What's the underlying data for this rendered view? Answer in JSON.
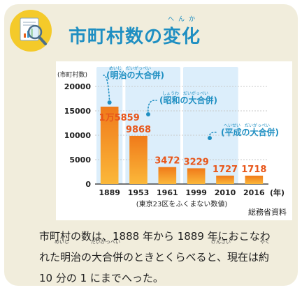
{
  "title": "市町村数の変化",
  "title_ruby": "へんか",
  "source": "総務省資料",
  "description": "市町村の数は、1888 年から 1889 年におこなわれた明治の大合併のときとくらべると、現在は約 10 分の 1 にまでへった。",
  "description_lines": [
    "市町村の数は、1888 年から 1889 年におこなわ",
    "れた明治の大合併のときとくらべると、現在は約",
    "10 分の 1 にまでへった。"
  ],
  "description_ruby": [
    "めいじ",
    "だいがっぺい",
    "げんざい",
    "やく"
  ],
  "colors": {
    "accent": "#1f8fc2",
    "bar_top": "#f07a1a",
    "bar_bottom": "#fbb83a",
    "label": "#e8561a",
    "highlight": "#dceefb"
  },
  "chart_data": {
    "type": "bar",
    "ylabel": "(市町村数)",
    "xunit": "(年)",
    "categories": [
      "1889",
      "1953",
      "1961",
      "1999",
      "2010",
      "2016"
    ],
    "values": [
      15859,
      9868,
      3472,
      3229,
      1727,
      1718
    ],
    "value_labels": [
      "1万5859",
      "9868",
      "3472",
      "3229",
      "1727",
      "1718"
    ],
    "ylim": [
      0,
      20000
    ],
    "yticks": [
      0,
      5000,
      10000,
      15000,
      20000
    ],
    "note": "(東京23区をふくまない数値)",
    "grid": true,
    "annotations": [
      {
        "text": "(明治の大合併)",
        "ruby": "めいじ　だいがっぺい",
        "highlight_from": 0,
        "highlight_to": 0
      },
      {
        "text": "(昭和の大合併)",
        "ruby": "しょうわ　だいがっぺい",
        "highlight_from": 1,
        "highlight_to": 2
      },
      {
        "text": "(平成の大合併)",
        "ruby": "へいせい　だいがっぺい",
        "highlight_from": 3,
        "highlight_to": 4
      }
    ]
  }
}
